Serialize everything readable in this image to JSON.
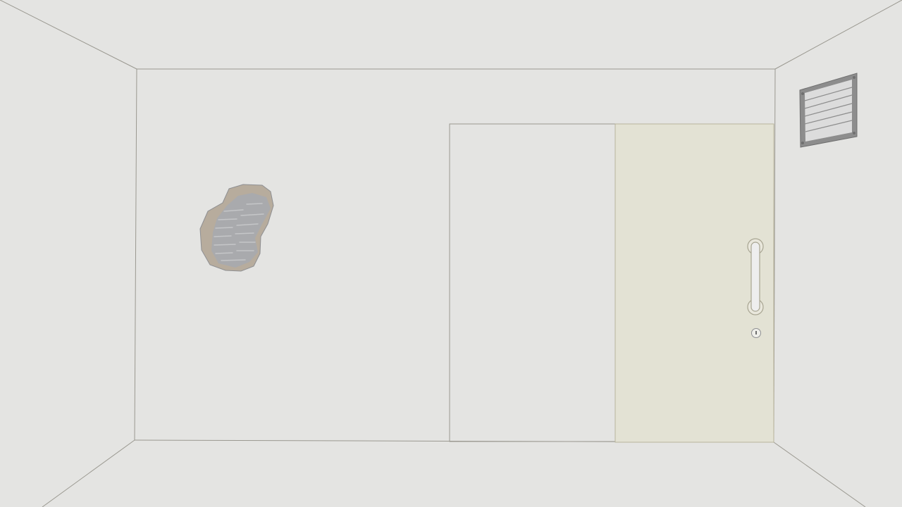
{
  "scene": {
    "name": "escape-room",
    "colors": {
      "wall": "#e4e4e2",
      "line": "#9a9890",
      "door": "#e3e2d4",
      "door_edge": "#b8b49c",
      "rubble": "#b7ac9d",
      "stone": "#a9aaad",
      "stone_dark": "#8e8f92",
      "vent_frame": "#8d8d8d",
      "vent_inner": "#dcdcdc"
    },
    "hotspots": {
      "wall_hole": {
        "icon": "broken-wall-hole-icon"
      },
      "air_vent": {
        "icon": "air-vent-icon"
      },
      "sliding_door": {
        "icon": "door-icon"
      },
      "door_handle": {
        "icon": "door-handle-icon"
      },
      "door_keyhole": {
        "icon": "keyhole-icon"
      }
    }
  }
}
